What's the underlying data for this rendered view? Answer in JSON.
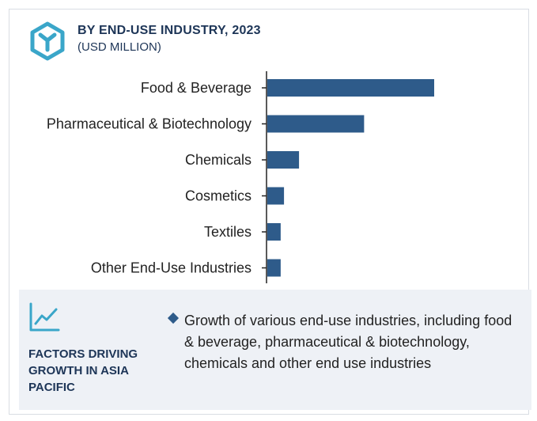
{
  "header": {
    "title": "BY END-USE INDUSTRY, 2023",
    "subtitle": "(USD MILLION)"
  },
  "colors": {
    "bar": "#2e5b8a",
    "axis": "#222222",
    "accent": "#3aa6c9",
    "panel": "#eef1f6",
    "heading": "#1d3557"
  },
  "icons": {
    "logo": "hexagon-logo-icon",
    "trend": "trend-line-icon",
    "bullet": "diamond-bullet-icon"
  },
  "chart_data": {
    "type": "bar",
    "orientation": "horizontal",
    "title": "BY END-USE INDUSTRY, 2023",
    "subtitle": "(USD MILLION)",
    "categories": [
      "Food & Beverage",
      "Pharmaceutical & Biotechnology",
      "Chemicals",
      "Cosmetics",
      "Textiles",
      "Other End-Use Industries"
    ],
    "values": [
      100,
      58,
      19,
      10,
      8,
      8
    ],
    "value_scale": "relative (no axis values printed)",
    "xlim": [
      0,
      100
    ],
    "grid": false,
    "legend": "none"
  },
  "factors": {
    "title": "FACTORS DRIVING GROWTH IN ASIA PACIFIC",
    "text": "Growth of various end-use industries, including food & beverage, pharmaceutical & biotechnology, chemicals and other end use industries"
  }
}
